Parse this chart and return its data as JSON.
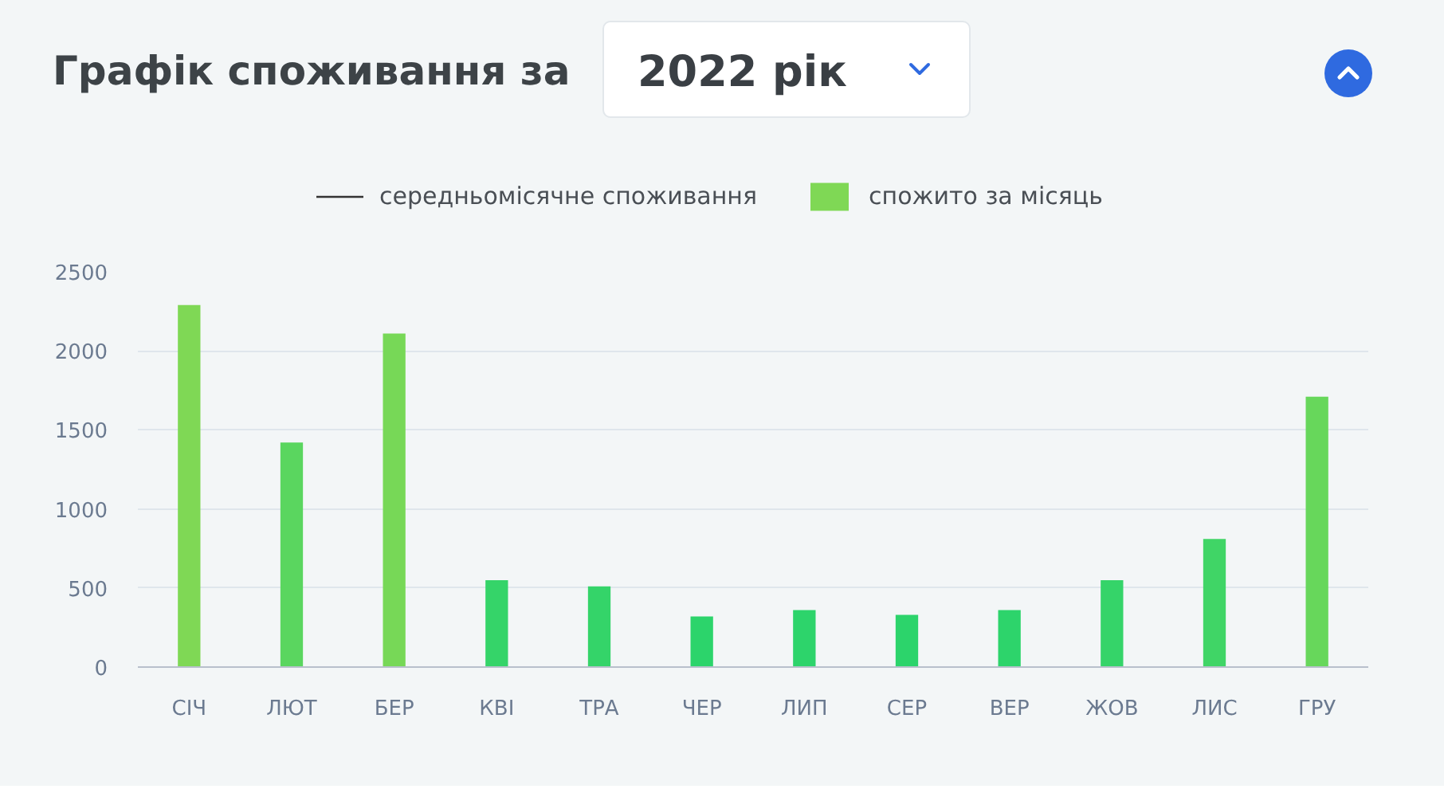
{
  "chart_data": {
    "type": "bar",
    "title": "Графік споживання за",
    "subtitle": "2022 рік",
    "categories": [
      "СІЧ",
      "ЛЮТ",
      "БЕР",
      "КВІ",
      "ТРА",
      "ЧЕР",
      "ЛИП",
      "СЕР",
      "ВЕР",
      "ЖОВ",
      "ЛИС",
      "ГРУ"
    ],
    "series": [
      {
        "name": "середньомісячне споживання",
        "type": "line",
        "color": "#333333",
        "values": [
          null,
          null,
          null,
          null,
          null,
          null,
          null,
          null,
          null,
          null,
          null,
          null
        ]
      },
      {
        "name": "спожито за місяць",
        "colors": [
          "#7fd855",
          "#5ad65f",
          "#77d857",
          "#35d469",
          "#34d469",
          "#2cd46b",
          "#2dd46b",
          "#2cd46b",
          "#2dd46b",
          "#35d469",
          "#40d566",
          "#67d75b"
        ],
        "values": [
          2290,
          1420,
          2110,
          550,
          510,
          320,
          360,
          330,
          360,
          550,
          810,
          1710
        ]
      }
    ],
    "ylim": [
      0,
      2500
    ],
    "yticks": [
      0,
      500,
      1000,
      1500,
      2000,
      2500
    ],
    "grid": "y",
    "legend": "top"
  }
}
